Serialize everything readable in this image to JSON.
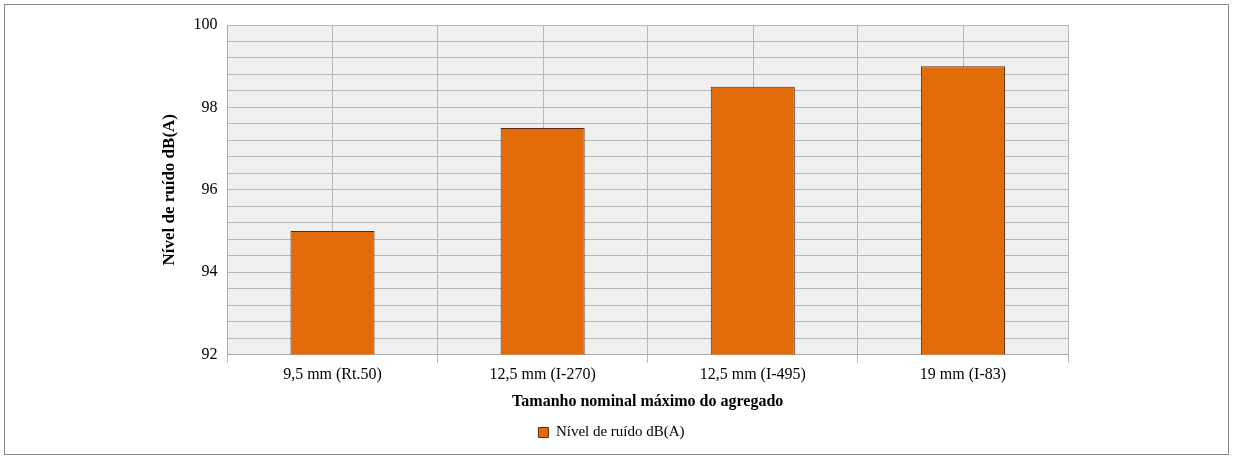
{
  "chart_data": {
    "type": "bar",
    "xlabel": "Tamanho nominal máximo do agregado",
    "ylabel": "Nível de ruído dB(A)",
    "categories": [
      "9,5 mm (Rt.50)",
      "12,5 mm (I-270)",
      "12,5 mm (I-495)",
      "19 mm (I-83)"
    ],
    "series": [
      {
        "name": "Nível de ruído dB(A)",
        "color": "#e36c0a",
        "values": [
          95,
          97.5,
          98.5,
          99
        ]
      }
    ],
    "ylim": [
      92,
      100
    ],
    "yticks": [
      92,
      {
        "value": 92.4,
        "label": null
      },
      {
        "value": 92.8,
        "label": null
      },
      {
        "value": 93.2,
        "label": null
      },
      {
        "value": 93.6,
        "label": null
      },
      94,
      {
        "value": 94.4,
        "label": null
      },
      {
        "value": 94.8,
        "label": null
      },
      {
        "value": 95.2,
        "label": null
      },
      {
        "value": 95.6,
        "label": null
      },
      96,
      {
        "value": 96.4,
        "label": null
      },
      {
        "value": 96.8,
        "label": null
      },
      {
        "value": 97.2,
        "label": null
      },
      {
        "value": 97.6,
        "label": null
      },
      98,
      {
        "value": 98.4,
        "label": null
      },
      {
        "value": 98.8,
        "label": null
      },
      {
        "value": 99.2,
        "label": null
      },
      {
        "value": 99.6,
        "label": null
      },
      100
    ],
    "grid": true,
    "legend": "bottom"
  }
}
